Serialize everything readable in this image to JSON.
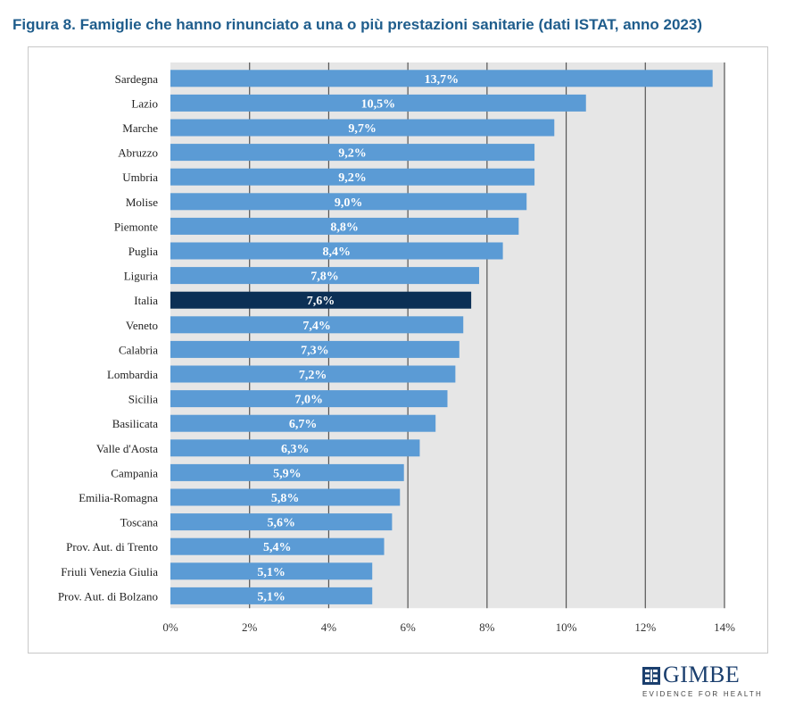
{
  "figure": {
    "title": "Figura 8. Famiglie che hanno rinunciato a una o più prestazioni sanitarie (dati ISTAT, anno 2023)"
  },
  "chart_data": {
    "type": "bar",
    "orientation": "horizontal",
    "categories": [
      "Sardegna",
      "Lazio",
      "Marche",
      "Abruzzo",
      "Umbria",
      "Molise",
      "Piemonte",
      "Puglia",
      "Liguria",
      "Italia",
      "Veneto",
      "Calabria",
      "Lombardia",
      "Sicilia",
      "Basilicata",
      "Valle d'Aosta",
      "Campania",
      "Emilia-Romagna",
      "Toscana",
      "Prov. Aut. di Trento",
      "Friuli Venezia Giulia",
      "Prov. Aut. di Bolzano"
    ],
    "values": [
      13.7,
      10.5,
      9.7,
      9.2,
      9.2,
      9.0,
      8.8,
      8.4,
      7.8,
      7.6,
      7.4,
      7.3,
      7.2,
      7.0,
      6.7,
      6.3,
      5.9,
      5.8,
      5.6,
      5.4,
      5.1,
      5.1
    ],
    "value_labels": [
      "13,7%",
      "10,5%",
      "9,7%",
      "9,2%",
      "9,2%",
      "9,0%",
      "8,8%",
      "8,4%",
      "7,8%",
      "7,6%",
      "7,4%",
      "7,3%",
      "7,2%",
      "7,0%",
      "6,7%",
      "6,3%",
      "5,9%",
      "5,8%",
      "5,6%",
      "5,4%",
      "5,1%",
      "5,1%"
    ],
    "highlight_category": "Italia",
    "xlim": [
      0,
      14
    ],
    "xticks": [
      0,
      2,
      4,
      6,
      8,
      10,
      12,
      14
    ],
    "xtick_labels": [
      "0%",
      "2%",
      "4%",
      "6%",
      "8%",
      "10%",
      "12%",
      "14%"
    ],
    "grid": "vertical",
    "colors": {
      "bar": "#5b9bd5",
      "highlight_bar": "#0b2f55",
      "plot_background": "#e6e6e6",
      "gridline": "#555555",
      "value_label": "#ffffff",
      "category_label": "#222222"
    }
  },
  "logo": {
    "name": "GIMBE",
    "tagline": "EVIDENCE FOR HEALTH"
  }
}
